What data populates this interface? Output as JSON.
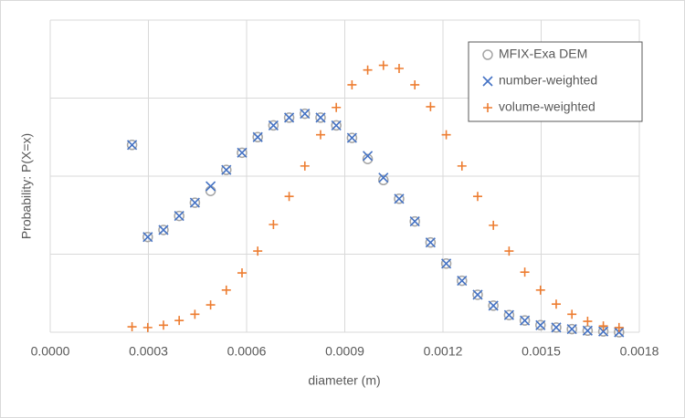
{
  "chart_data": {
    "type": "scatter",
    "x_label": "diameter (m)",
    "y_label": "Probability: P(X=x)",
    "xlim": [
      0,
      0.0018
    ],
    "xticks": [
      {
        "value": 0,
        "label": "0.0000"
      },
      {
        "value": 0.0003,
        "label": "0.0003"
      },
      {
        "value": 0.0006,
        "label": "0.0006"
      },
      {
        "value": 0.0009,
        "label": "0.0009"
      },
      {
        "value": 0.0012,
        "label": "0.0012"
      },
      {
        "value": 0.0015,
        "label": "0.0015"
      },
      {
        "value": 0.0018,
        "label": "0.0018"
      }
    ],
    "ylim": [
      0,
      4
    ],
    "ygridlines": [
      0,
      1,
      2,
      3,
      4
    ],
    "grid": true,
    "legend": "top-right",
    "x": [
      0.00025,
      0.000298,
      0.000346,
      0.000394,
      0.000442,
      0.00049,
      0.000538,
      0.000586,
      0.000634,
      0.000682,
      0.00073,
      0.000778,
      0.000826,
      0.000874,
      0.000922,
      0.00097,
      0.001018,
      0.001066,
      0.001114,
      0.001162,
      0.00121,
      0.001258,
      0.001306,
      0.001354,
      0.001402,
      0.00145,
      0.001498,
      0.001546,
      0.001594,
      0.001642,
      0.00169,
      0.001738
    ],
    "series": [
      {
        "name": "MFIX-Exa DEM",
        "color": "#a5a5a5",
        "marker": "circle",
        "values": [
          2.4,
          1.22,
          1.31,
          1.49,
          1.66,
          1.81,
          2.08,
          2.3,
          2.5,
          2.65,
          2.75,
          2.8,
          2.75,
          2.65,
          2.49,
          2.22,
          1.95,
          1.71,
          1.42,
          1.15,
          0.88,
          0.66,
          0.48,
          0.34,
          0.22,
          0.15,
          0.09,
          0.06,
          0.04,
          0.02,
          0.01,
          0
        ]
      },
      {
        "name": "number-weighted",
        "color": "#4472c4",
        "marker": "x",
        "values": [
          2.4,
          1.22,
          1.31,
          1.49,
          1.66,
          1.87,
          2.08,
          2.3,
          2.5,
          2.65,
          2.75,
          2.8,
          2.75,
          2.65,
          2.49,
          2.26,
          1.98,
          1.71,
          1.42,
          1.15,
          0.88,
          0.66,
          0.48,
          0.34,
          0.22,
          0.15,
          0.09,
          0.06,
          0.04,
          0.02,
          0.01,
          0
        ]
      },
      {
        "name": "volume-weighted",
        "color": "#ed7d31",
        "marker": "plus",
        "values": [
          0.07,
          0.06,
          0.09,
          0.15,
          0.23,
          0.35,
          0.54,
          0.76,
          1.04,
          1.38,
          1.74,
          2.13,
          2.53,
          2.88,
          3.17,
          3.36,
          3.42,
          3.38,
          3.17,
          2.89,
          2.53,
          2.13,
          1.74,
          1.37,
          1.04,
          0.77,
          0.54,
          0.36,
          0.23,
          0.14,
          0.08,
          0.06
        ]
      }
    ]
  }
}
